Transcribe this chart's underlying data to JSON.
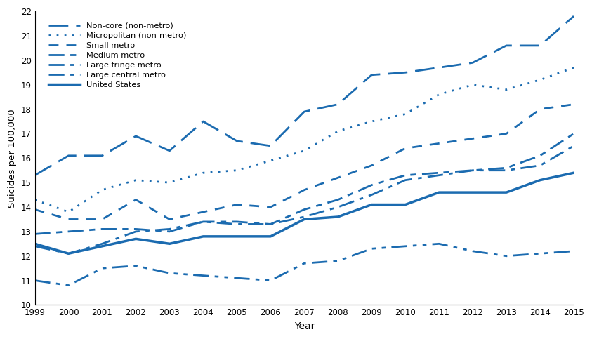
{
  "years": [
    1999,
    2000,
    2001,
    2002,
    2003,
    2004,
    2005,
    2006,
    2007,
    2008,
    2009,
    2010,
    2011,
    2012,
    2013,
    2014,
    2015
  ],
  "non_core": [
    15.3,
    16.1,
    16.1,
    16.9,
    16.3,
    17.5,
    16.7,
    16.5,
    17.9,
    18.2,
    19.4,
    19.5,
    19.7,
    19.9,
    20.6,
    20.6,
    21.8
  ],
  "micropolitan": [
    14.3,
    13.8,
    14.7,
    15.1,
    15.0,
    15.4,
    15.5,
    15.9,
    16.3,
    17.1,
    17.5,
    17.8,
    18.6,
    19.0,
    18.8,
    19.2,
    19.7
  ],
  "small_metro": [
    13.9,
    13.5,
    13.5,
    14.3,
    13.5,
    13.8,
    14.1,
    14.0,
    14.7,
    15.2,
    15.7,
    16.4,
    16.6,
    16.8,
    17.0,
    18.0,
    18.2
  ],
  "medium_metro": [
    12.9,
    13.0,
    13.1,
    13.1,
    13.0,
    13.4,
    13.4,
    13.3,
    13.9,
    14.3,
    14.9,
    15.3,
    15.4,
    15.5,
    15.6,
    16.1,
    17.0
  ],
  "large_fringe": [
    12.4,
    12.1,
    12.5,
    13.0,
    13.1,
    13.4,
    13.3,
    13.3,
    13.6,
    14.0,
    14.5,
    15.1,
    15.3,
    15.5,
    15.5,
    15.7,
    16.5
  ],
  "large_central": [
    11.0,
    10.8,
    11.5,
    11.6,
    11.3,
    11.2,
    11.1,
    11.0,
    11.7,
    11.8,
    12.3,
    12.4,
    12.5,
    12.2,
    12.0,
    12.1,
    12.2
  ],
  "united_states": [
    12.5,
    12.1,
    12.4,
    12.7,
    12.5,
    12.8,
    12.8,
    12.8,
    13.5,
    13.6,
    14.1,
    14.1,
    14.6,
    14.6,
    14.6,
    15.1,
    15.4
  ],
  "color": "#1B6BB0",
  "ylim": [
    10,
    22
  ],
  "yticks": [
    10,
    11,
    12,
    13,
    14,
    15,
    16,
    17,
    18,
    19,
    20,
    21,
    22
  ],
  "xlabel": "Year",
  "ylabel": "Suicides per 100,000"
}
